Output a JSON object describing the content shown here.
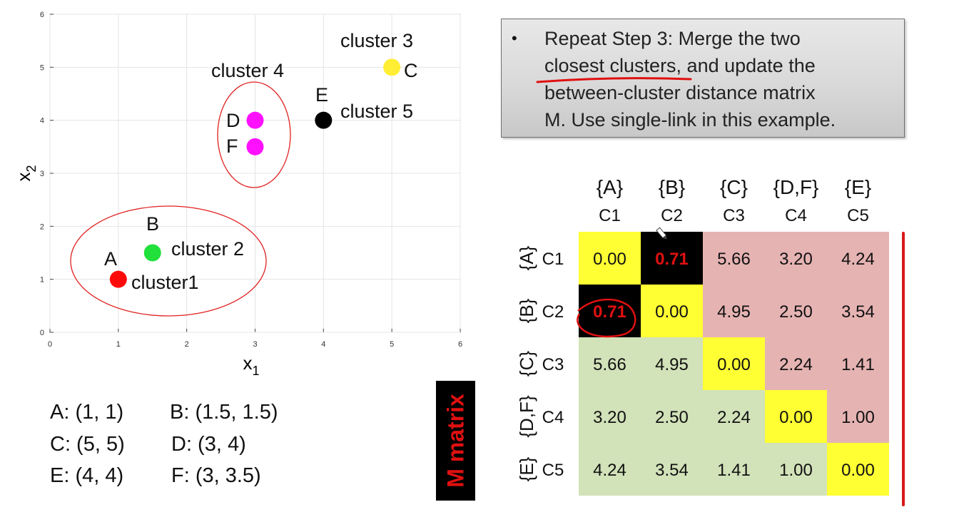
{
  "scatter": {
    "chart_data": {
      "type": "scatter",
      "xlabel": "x",
      "xlabel_sub": "1",
      "ylabel": "x",
      "ylabel_sub": "2",
      "xlim": [
        0,
        6
      ],
      "ylim": [
        0,
        6
      ],
      "xticks": [
        0,
        1,
        2,
        3,
        4,
        5,
        6
      ],
      "yticks": [
        0,
        1,
        2,
        3,
        4,
        5,
        6
      ],
      "grid": true,
      "points": [
        {
          "label": "A",
          "x": 1,
          "y": 1,
          "color": "#ff0a0a"
        },
        {
          "label": "B",
          "x": 1.5,
          "y": 1.5,
          "color": "#22e03c"
        },
        {
          "label": "C",
          "x": 5,
          "y": 5,
          "color": "#ffee33"
        },
        {
          "label": "D",
          "x": 3,
          "y": 4,
          "color": "#ff11ff"
        },
        {
          "label": "E",
          "x": 4,
          "y": 4,
          "color": "#000000"
        },
        {
          "label": "F",
          "x": 3,
          "y": 3.5,
          "color": "#ff11ff"
        }
      ],
      "cluster_labels": [
        "cluster1",
        "cluster 2",
        "cluster 3",
        "cluster 4",
        "cluster 5"
      ],
      "ellipse_color": "#e02020"
    }
  },
  "point_list": [
    [
      "A: (1, 1)",
      "B: (1.5, 1.5)"
    ],
    [
      "C: (5, 5)",
      "D: (3, 4)"
    ],
    [
      "E: (4, 4)",
      "F: (3, 3.5)"
    ]
  ],
  "note": {
    "bullet": "•",
    "lines": [
      "Repeat Step 3: Merge the two",
      "closest clusters, and update the",
      "between-cluster distance matrix",
      "M. Use single-link in this example."
    ]
  },
  "m_matrix_label": "M matrix",
  "matrix": {
    "chart_data": {
      "type": "heatmap",
      "col_sets": [
        "{A}",
        "{B}",
        "{C}",
        "{D,F}",
        "{E}"
      ],
      "col_ids": [
        "C1",
        "C2",
        "C3",
        "C4",
        "C5"
      ],
      "row_sets": [
        "{A}",
        "{B}",
        "{C}",
        "{D,F}",
        "{E}"
      ],
      "row_ids": [
        "C1",
        "C2",
        "C3",
        "C4",
        "C5"
      ],
      "values": [
        [
          "0.00",
          "0.71",
          "5.66",
          "3.20",
          "4.24"
        ],
        [
          "0.71",
          "0.00",
          "4.95",
          "2.50",
          "3.54"
        ],
        [
          "5.66",
          "4.95",
          "0.00",
          "2.24",
          "1.41"
        ],
        [
          "3.20",
          "2.50",
          "2.24",
          "0.00",
          "1.00"
        ],
        [
          "4.24",
          "3.54",
          "1.41",
          "1.00",
          "0.00"
        ]
      ],
      "highlighted": [
        [
          0,
          1
        ],
        [
          1,
          0
        ]
      ],
      "colors": {
        "diagonal": "#ffff33",
        "upper": "#e6b3b3",
        "lower": "#d2e2b9",
        "highlight_bg": "#000000",
        "highlight_text": "#e01010",
        "annotation": "#e01010"
      }
    }
  }
}
